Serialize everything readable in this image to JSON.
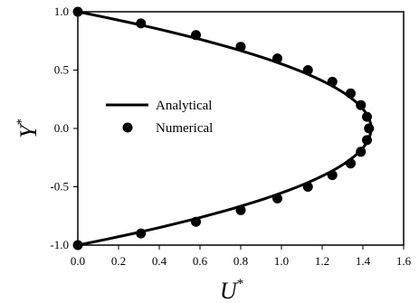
{
  "chart_data": {
    "type": "line",
    "xlabel": "U",
    "xlabel_sup": "*",
    "ylabel": "Y",
    "ylabel_sup": "*",
    "xlim": [
      0.0,
      1.6
    ],
    "ylim": [
      -1.0,
      1.0
    ],
    "xticks": [
      "0.0",
      "0.2",
      "0.4",
      "0.6",
      "0.8",
      "1.0",
      "1.2",
      "1.4",
      "1.6"
    ],
    "yticks": [
      "-1.0",
      "-0.5",
      "0.0",
      "0.5",
      "1.0"
    ],
    "grid": false,
    "legend": {
      "placement": "center-left",
      "entries": [
        {
          "label": "Analytical",
          "marker": "line"
        },
        {
          "label": "Numerical",
          "marker": "circle"
        }
      ]
    },
    "series": [
      {
        "name": "Analytical",
        "kind": "curve",
        "formula_note": "parabolic profile",
        "peak": 1.44,
        "y_range": [
          -1.0,
          1.0
        ]
      },
      {
        "name": "Numerical",
        "kind": "points",
        "points": [
          [
            0.0,
            1.0
          ],
          [
            0.31,
            0.9
          ],
          [
            0.58,
            0.8
          ],
          [
            0.8,
            0.7
          ],
          [
            0.98,
            0.6
          ],
          [
            1.13,
            0.5
          ],
          [
            1.25,
            0.4
          ],
          [
            1.34,
            0.3
          ],
          [
            1.39,
            0.2
          ],
          [
            1.42,
            0.1
          ],
          [
            1.43,
            0.0
          ],
          [
            1.42,
            -0.1
          ],
          [
            1.39,
            -0.2
          ],
          [
            1.34,
            -0.3
          ],
          [
            1.25,
            -0.4
          ],
          [
            1.13,
            -0.5
          ],
          [
            0.98,
            -0.6
          ],
          [
            0.8,
            -0.7
          ],
          [
            0.58,
            -0.8
          ],
          [
            0.31,
            -0.9
          ],
          [
            0.0,
            -1.0
          ]
        ]
      }
    ],
    "colors": {
      "line": "#000000",
      "marker": "#000000"
    }
  }
}
